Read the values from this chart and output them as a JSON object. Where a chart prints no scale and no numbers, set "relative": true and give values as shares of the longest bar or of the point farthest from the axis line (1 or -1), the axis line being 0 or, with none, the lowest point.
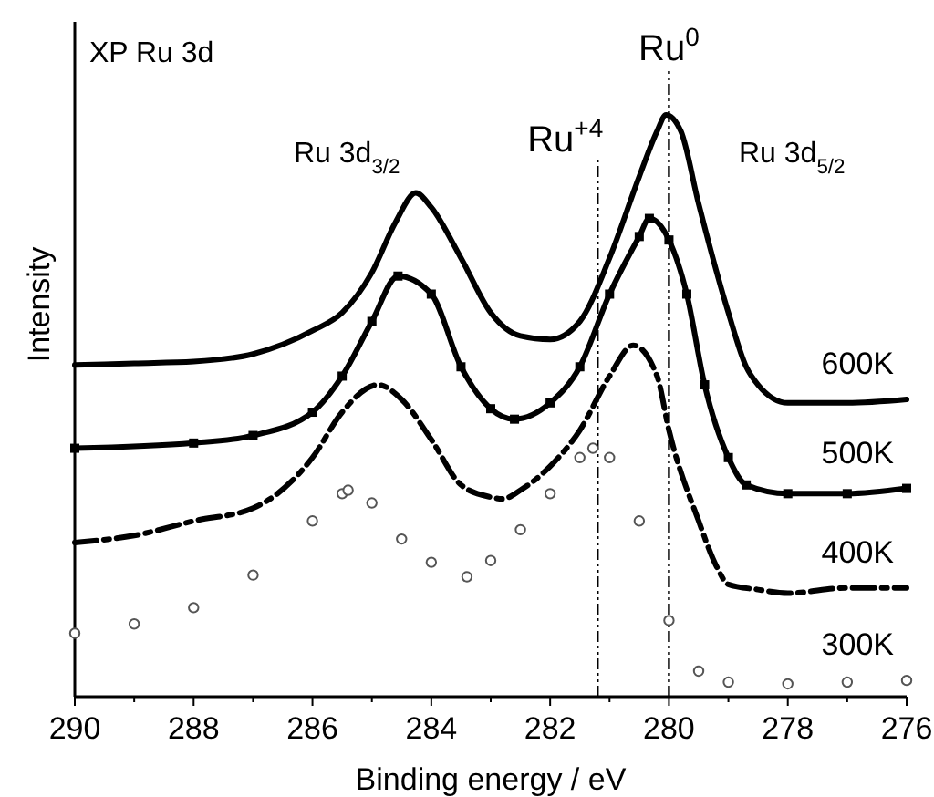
{
  "chart_data": {
    "type": "line",
    "relative": true,
    "xlabel": "Binding energy / eV",
    "ylabel": "Intensity",
    "xlim": [
      290,
      276
    ],
    "xticks": [
      290,
      288,
      286,
      284,
      282,
      280,
      278,
      276
    ],
    "tick_labels": "x",
    "annotations": [
      "XP Ru 3d",
      "Ru 3d$_{3/2}$",
      "Ru 3d$_{5/2}$"
    ],
    "ref_lines": [
      {
        "axis": "x",
        "value": 281.2,
        "label": "Ru$^{+4}$",
        "line_style": "dashed",
        "color": "#000000"
      },
      {
        "axis": "x",
        "value": 280.0,
        "label": "Ru$^{0}$",
        "line_style": "dashed",
        "color": "#000000"
      }
    ],
    "series": [
      {
        "name": "600K",
        "color": "#000000",
        "line_style": "solid",
        "marker": "none",
        "x": [
          290,
          289,
          288,
          287,
          286,
          285.5,
          285,
          284.6,
          284.26,
          284,
          283.5,
          283,
          282.5,
          282,
          281.5,
          281,
          280.5,
          280.2,
          280.05,
          279.8,
          279.5,
          279,
          278.7,
          278.5,
          278,
          277,
          276
        ],
        "values": [
          0.57,
          0.573,
          0.576,
          0.589,
          0.629,
          0.66,
          0.729,
          0.816,
          0.866,
          0.841,
          0.754,
          0.66,
          0.62,
          0.614,
          0.645,
          0.754,
          0.894,
          0.972,
          1,
          0.972,
          0.847,
          0.66,
          0.567,
          0.536,
          0.505,
          0.505,
          0.511
        ]
      },
      {
        "name": "500K",
        "color": "#000000",
        "line_style": "solid",
        "marker": "square",
        "x": [
          290,
          288,
          287,
          286,
          285.5,
          285,
          284.56,
          284,
          283.5,
          283,
          282.6,
          282,
          281.5,
          281,
          280.5,
          280.33,
          280,
          279.7,
          279.4,
          279,
          278.7,
          278,
          277,
          276
        ],
        "values": [
          0.427,
          0.436,
          0.449,
          0.489,
          0.551,
          0.645,
          0.723,
          0.692,
          0.567,
          0.495,
          0.477,
          0.505,
          0.567,
          0.692,
          0.791,
          0.822,
          0.785,
          0.692,
          0.536,
          0.411,
          0.364,
          0.349,
          0.349,
          0.358
        ]
      },
      {
        "name": "400K",
        "color": "#000000",
        "line_style": "dashed",
        "marker": "none",
        "x": [
          290,
          289,
          288,
          287,
          286,
          285.5,
          284.9,
          284.5,
          284,
          283.5,
          283,
          282.8,
          282.5,
          282,
          281.5,
          281,
          280.6,
          280.2,
          280,
          279.5,
          279.2,
          279,
          278.5,
          278,
          277,
          276
        ],
        "values": [
          0.265,
          0.277,
          0.302,
          0.324,
          0.411,
          0.489,
          0.536,
          0.511,
          0.442,
          0.364,
          0.343,
          0.34,
          0.355,
          0.396,
          0.458,
          0.551,
          0.604,
          0.551,
          0.458,
          0.302,
          0.224,
          0.193,
          0.184,
          0.178,
          0.187,
          0.187
        ]
      },
      {
        "name": "300K",
        "type": "scatter",
        "color": "#555555",
        "marker": "circle",
        "x": [
          290,
          289,
          288,
          287,
          286,
          285.5,
          285.4,
          285,
          284.5,
          284,
          283.4,
          283,
          282.5,
          282,
          281.5,
          281.28,
          281,
          280.5,
          280,
          279.5,
          279,
          278,
          277,
          276
        ],
        "values": [
          0.109,
          0.125,
          0.153,
          0.209,
          0.302,
          0.349,
          0.355,
          0.333,
          0.271,
          0.231,
          0.206,
          0.234,
          0.287,
          0.349,
          0.411,
          0.427,
          0.411,
          0.302,
          0.131,
          0.044,
          0.025,
          0.022,
          0.025,
          0.028
        ]
      }
    ]
  }
}
